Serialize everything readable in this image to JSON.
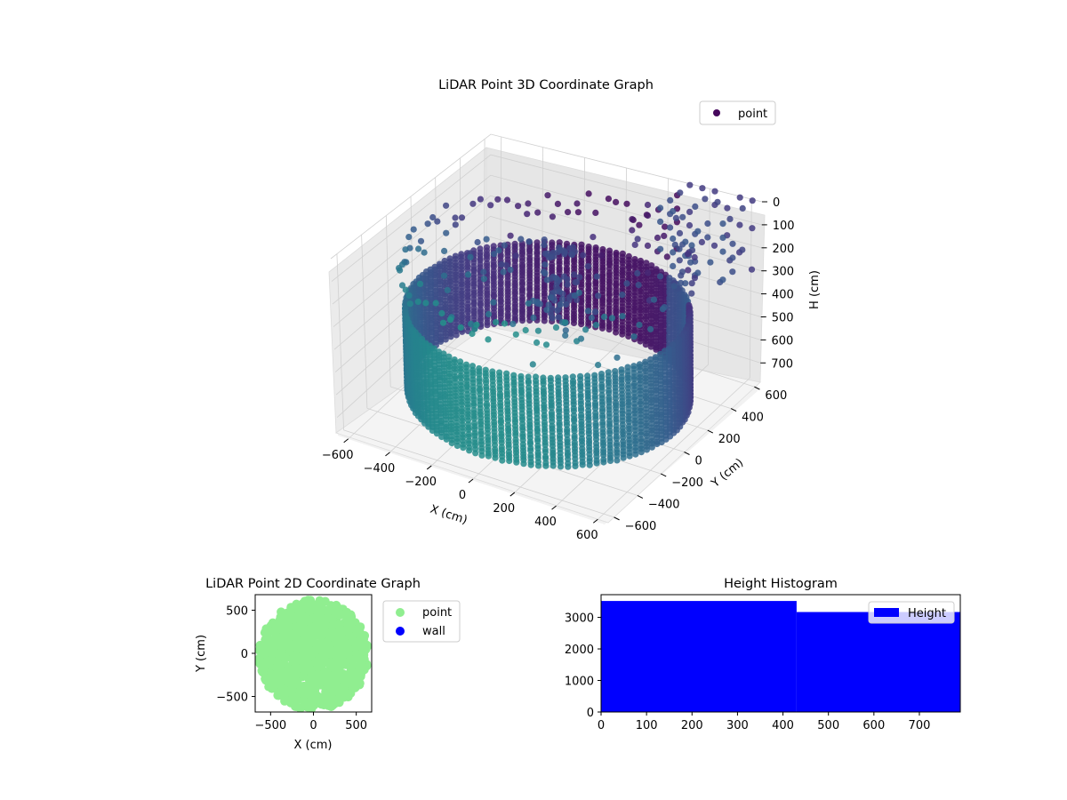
{
  "chart_data": [
    {
      "type": "scatter",
      "projection": "3d",
      "title": "LiDAR Point 3D Coordinate Graph",
      "xlabel": "X (cm)",
      "ylabel": "Y (cm)",
      "zlabel": "H (cm)",
      "xticks": [
        "−600",
        "−400",
        "−200",
        "0",
        "200",
        "400",
        "600"
      ],
      "yticks": [
        "−600",
        "−400",
        "−200",
        "0",
        "200",
        "400",
        "600"
      ],
      "zticks": [
        "0",
        "100",
        "200",
        "300",
        "400",
        "500",
        "600",
        "700"
      ],
      "xlim": [
        -650,
        650
      ],
      "ylim": [
        -650,
        650
      ],
      "zlim": [
        0,
        780
      ],
      "zaxis_inverted": true,
      "grid": true,
      "legend": {
        "placement": "top-right",
        "entries": [
          {
            "label": "point",
            "color": "#46085c"
          }
        ]
      },
      "colormap": "viridis",
      "series": [
        {
          "name": "point",
          "description_counts": "cylindrical wall radius ~600 cm, heights ~350 to ~720 cm; ceiling ring ~100 cm; central fixture near x≈0,y≈0",
          "wall": {
            "radius": 600,
            "h_min": 350,
            "h_max": 720
          },
          "ceiling_ring": {
            "radius": 600,
            "h": 100
          },
          "fixture": [
            {
              "x": 0,
              "y": 120,
              "h": 140
            },
            {
              "x": -40,
              "y": 100,
              "h": 160
            },
            {
              "x": 40,
              "y": 140,
              "h": 150
            },
            {
              "x": -20,
              "y": 110,
              "h": 260
            },
            {
              "x": -20,
              "y": 110,
              "h": 330
            },
            {
              "x": -20,
              "y": 110,
              "h": 420
            },
            {
              "x": 30,
              "y": 150,
              "h": 280
            },
            {
              "x": 30,
              "y": 150,
              "h": 360
            }
          ],
          "outer_grid": {
            "x_range": [
              250,
              650
            ],
            "y_range": [
              400,
              680
            ],
            "h_range": [
              0,
              300
            ]
          }
        }
      ]
    },
    {
      "type": "scatter",
      "title": "LiDAR Point 2D Coordinate Graph",
      "xlabel": "X (cm)",
      "ylabel": "Y (cm)",
      "xticks": [
        "−500",
        "0",
        "500"
      ],
      "yticks": [
        "−500",
        "0",
        "500"
      ],
      "xlim": [
        -680,
        680
      ],
      "ylim": [
        -680,
        680
      ],
      "legend": {
        "placement": "outside-right",
        "entries": [
          {
            "label": "point",
            "color": "#90ee90"
          },
          {
            "label": "wall",
            "color": "#0000ff"
          }
        ]
      },
      "series": [
        {
          "name": "point",
          "color": "#90ee90",
          "region": "disc radius ~640 cm centered at (0,-20)"
        },
        {
          "name": "wall",
          "color": "#0000ff",
          "points": []
        }
      ]
    },
    {
      "type": "bar",
      "title": "Height Histogram",
      "xlabel": "",
      "ylabel": "",
      "xticks": [
        "0",
        "100",
        "200",
        "300",
        "400",
        "500",
        "600",
        "700"
      ],
      "yticks": [
        "0",
        "1000",
        "2000",
        "3000"
      ],
      "xlim": [
        0,
        790
      ],
      "ylim": [
        0,
        3720
      ],
      "legend": {
        "placement": "top-right",
        "entries": [
          {
            "label": "Height",
            "color": "#0000ff"
          }
        ]
      },
      "series": [
        {
          "name": "Height",
          "color": "#0000ff",
          "bins": [
            {
              "x0": 0,
              "x1": 430,
              "count": 3520
            },
            {
              "x0": 430,
              "x1": 790,
              "count": 3170
            }
          ]
        }
      ]
    }
  ]
}
